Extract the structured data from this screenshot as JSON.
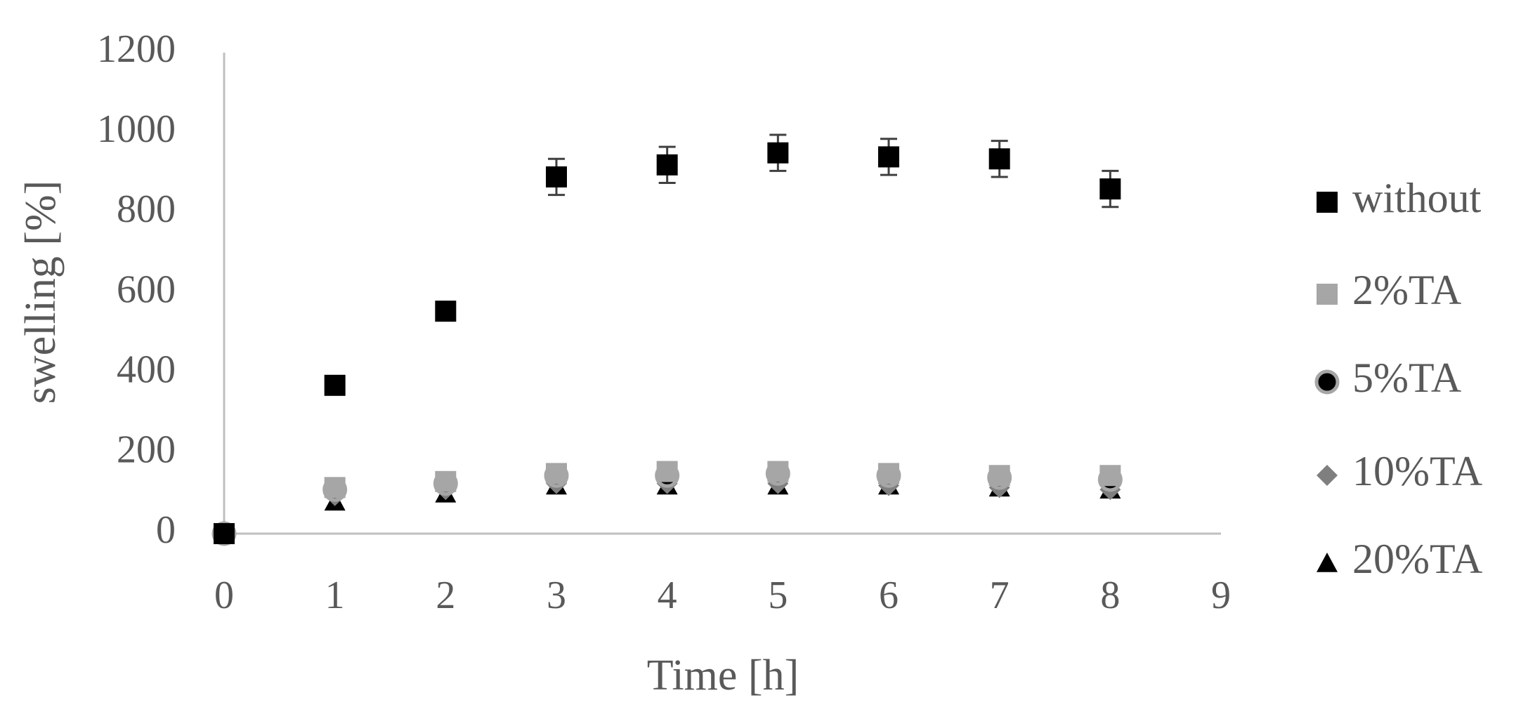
{
  "chart_data": {
    "type": "scatter",
    "x_label": "Time [h]",
    "y_label": "swelling [%]",
    "xlim": [
      0,
      9
    ],
    "xticks": [
      0,
      1,
      2,
      3,
      4,
      5,
      6,
      7,
      8,
      9
    ],
    "ylim": [
      0,
      1200
    ],
    "yticks": [
      0,
      200,
      400,
      600,
      800,
      1000,
      1200
    ],
    "grid": false,
    "legend": "right",
    "x": [
      0,
      1,
      2,
      3,
      4,
      5,
      6,
      7,
      8
    ],
    "series": [
      {
        "name": "without",
        "color": "#000000",
        "marker": "square",
        "values": [
          0,
          370,
          555,
          890,
          920,
          950,
          940,
          935,
          860
        ],
        "errors": [
          5,
          15,
          20,
          45,
          45,
          45,
          45,
          45,
          45
        ]
      },
      {
        "name": "2%TA",
        "color": "#a6a6a6",
        "marker": "square",
        "values": [
          0,
          115,
          130,
          150,
          155,
          155,
          150,
          145,
          145
        ]
      },
      {
        "name": "5%TA",
        "color": "#000000",
        "marker": "circle",
        "values": [
          0,
          110,
          125,
          145,
          145,
          150,
          145,
          140,
          135
        ]
      },
      {
        "name": "10%TA",
        "color": "#7f7f7f",
        "marker": "diamond",
        "values": [
          0,
          95,
          110,
          125,
          125,
          125,
          120,
          115,
          110
        ]
      },
      {
        "name": "20%TA",
        "color": "#000000",
        "marker": "triangle",
        "values": [
          0,
          80,
          100,
          120,
          120,
          120,
          120,
          115,
          110
        ]
      }
    ]
  }
}
